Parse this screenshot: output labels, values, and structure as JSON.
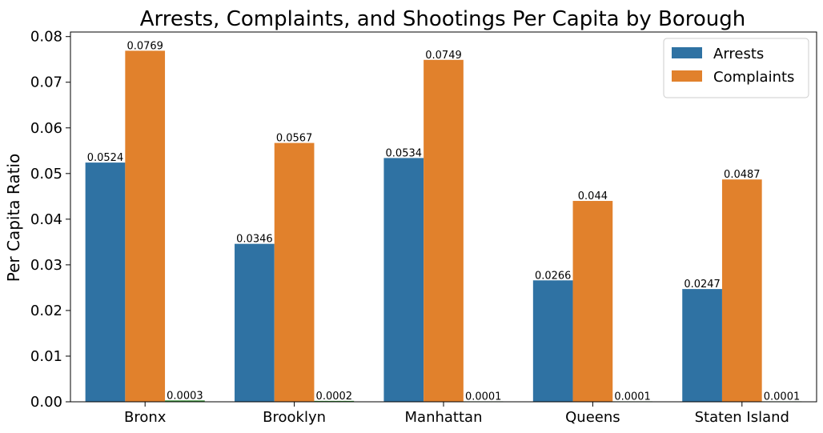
{
  "chart_data": {
    "type": "bar",
    "title": "Arrests, Complaints, and Shootings Per Capita by Borough",
    "xlabel": "",
    "ylabel": "Per Capita Ratio",
    "categories": [
      "Bronx",
      "Brooklyn",
      "Manhattan",
      "Queens",
      "Staten Island"
    ],
    "series": [
      {
        "name": "Arrests",
        "color": "#2f72a3",
        "values": [
          0.0524,
          0.0346,
          0.0534,
          0.0266,
          0.0247
        ],
        "labels": [
          "0.0524",
          "0.0346",
          "0.0534",
          "0.0266",
          "0.0247"
        ]
      },
      {
        "name": "Complaints",
        "color": "#e1812c",
        "values": [
          0.0769,
          0.0567,
          0.0749,
          0.044,
          0.0487
        ],
        "labels": [
          "0.0769",
          "0.0567",
          "0.0749",
          "0.044",
          "0.0487"
        ]
      },
      {
        "color": "#3a923a",
        "values": [
          0.0003,
          0.0002,
          0.0001,
          0.0001,
          0.0001
        ],
        "labels": [
          "0.0003",
          "0.0002",
          "0.0001",
          "0.0001",
          "0.0001"
        ]
      }
    ],
    "ylim": [
      0,
      0.081
    ],
    "yticks": [
      "0.00",
      "0.01",
      "0.02",
      "0.03",
      "0.04",
      "0.05",
      "0.06",
      "0.07",
      "0.08"
    ],
    "grid": false,
    "legend": {
      "placement": "top-right",
      "entries": [
        "Arrests",
        "Complaints"
      ]
    }
  }
}
